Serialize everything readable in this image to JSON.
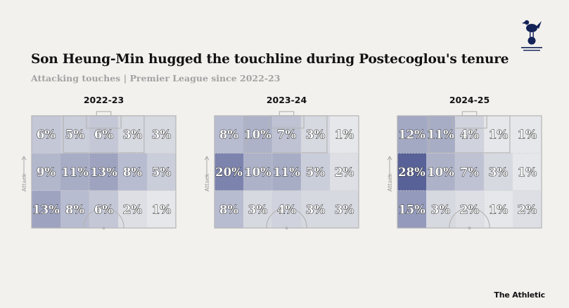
{
  "header": {
    "title": "Son Heung-Min hugged the touchline during Postecoglou's tenure",
    "subtitle": "Attacking touches | Premier League since 2022-23",
    "credit": "The Athletic"
  },
  "logo": {
    "icon": "tottenham-cockerel-crest",
    "color": "#132257"
  },
  "colors": {
    "background": "#f2f1ee",
    "cell_high": "#4a5590",
    "cell_low": "#f4f4f2",
    "pitch_line": "#b5b5b5"
  },
  "chart_data": [
    {
      "type": "heatmap",
      "title": "2022-23",
      "ylabel": "Attack",
      "rows": 3,
      "cols": 5,
      "values": [
        [
          6,
          5,
          6,
          3,
          3
        ],
        [
          9,
          11,
          13,
          8,
          5
        ],
        [
          13,
          8,
          6,
          2,
          1
        ]
      ],
      "labels": [
        [
          "6%",
          "5%",
          "6%",
          "3%",
          "3%"
        ],
        [
          "9%",
          "11%",
          "13%",
          "8%",
          "5%"
        ],
        [
          "13%",
          "8%",
          "6%",
          "2%",
          "1%"
        ]
      ]
    },
    {
      "type": "heatmap",
      "title": "2023-24",
      "ylabel": "Attack",
      "rows": 3,
      "cols": 5,
      "values": [
        [
          8,
          10,
          7,
          3,
          1
        ],
        [
          20,
          10,
          11,
          5,
          2
        ],
        [
          8,
          3,
          4,
          3,
          3
        ]
      ],
      "labels": [
        [
          "8%",
          "10%",
          "7%",
          "3%",
          "1%"
        ],
        [
          "20%",
          "10%",
          "11%",
          "5%",
          "2%"
        ],
        [
          "8%",
          "3%",
          "4%",
          "3%",
          "3%"
        ]
      ]
    },
    {
      "type": "heatmap",
      "title": "2024-25",
      "ylabel": "Attack",
      "rows": 3,
      "cols": 5,
      "values": [
        [
          12,
          11,
          4,
          1,
          1
        ],
        [
          28,
          10,
          7,
          3,
          1
        ],
        [
          15,
          3,
          2,
          1,
          2
        ]
      ],
      "labels": [
        [
          "12%",
          "11%",
          "4%",
          "1%",
          "1%"
        ],
        [
          "28%",
          "10%",
          "7%",
          "3%",
          "1%"
        ],
        [
          "15%",
          "3%",
          "2%",
          "1%",
          "2%"
        ]
      ]
    }
  ]
}
